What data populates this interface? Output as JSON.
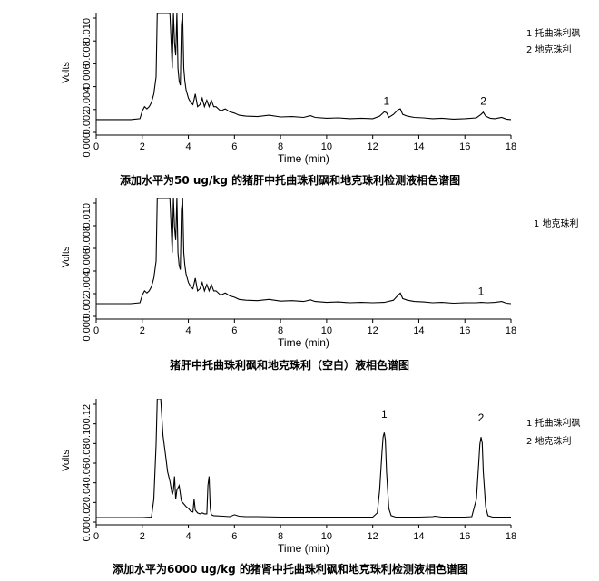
{
  "chart_data": [
    {
      "type": "line",
      "caption": "添加水平为50 ug/kg 的猪肝中托曲珠利砜和地克珠利检测液相色谱图",
      "xlabel": "Time (min)",
      "ylabel": "Volts",
      "xlim": [
        0,
        18
      ],
      "x_ticks": [
        "0",
        "2",
        "4",
        "6",
        "8",
        "10",
        "12",
        "14",
        "16",
        "18"
      ],
      "y_tick_labels": [
        "0.000",
        "0.002",
        "0.004",
        "0.006",
        "0.008",
        "0.010"
      ],
      "ylim": [
        -0.0003,
        0.0025
      ],
      "legend": [
        "1 托曲珠利砜",
        "2 地克珠利"
      ],
      "peak_labels": [
        {
          "text": "1",
          "x": 12.6,
          "y": 0.00018
        },
        {
          "text": "2",
          "x": 16.8,
          "y": 0.00018
        }
      ],
      "x": [
        0,
        0.5,
        1,
        1.5,
        1.9,
        2.0,
        2.1,
        2.2,
        2.3,
        2.4,
        2.5,
        2.6,
        2.65,
        2.7,
        3.0,
        3.2,
        3.3,
        3.35,
        3.4,
        3.45,
        3.5,
        3.55,
        3.6,
        3.65,
        3.7,
        3.75,
        3.8,
        3.85,
        3.9,
        3.95,
        4.0,
        4.1,
        4.2,
        4.3,
        4.4,
        4.5,
        4.6,
        4.7,
        4.8,
        4.9,
        5.0,
        5.1,
        5.2,
        5.4,
        5.6,
        5.8,
        6.0,
        6.2,
        6.5,
        7.0,
        7.5,
        8.0,
        8.5,
        9.0,
        9.3,
        9.5,
        10,
        10.5,
        11,
        11.5,
        12.0,
        12.3,
        12.5,
        12.6,
        12.7,
        12.9,
        13.1,
        13.2,
        13.3,
        13.5,
        13.8,
        14.2,
        14.6,
        15.0,
        15.5,
        16.0,
        16.5,
        16.7,
        16.8,
        16.9,
        17.1,
        17.3,
        17.6,
        17.8,
        18.0
      ],
      "y": [
        0,
        0,
        0,
        0,
        2e-05,
        0.0002,
        0.0003,
        0.00025,
        0.0003,
        0.0004,
        0.0006,
        0.001,
        0.0025,
        0.0025,
        0.0025,
        0.0025,
        0.0012,
        0.0025,
        0.0018,
        0.0015,
        0.0025,
        0.0012,
        0.0009,
        0.0008,
        0.0022,
        0.0025,
        0.0012,
        0.0009,
        0.0007,
        0.0006,
        0.0005,
        0.0004,
        0.00035,
        0.0006,
        0.0003,
        0.00035,
        0.0005,
        0.0003,
        0.00045,
        0.0003,
        0.00045,
        0.0003,
        0.0003,
        0.0002,
        0.00025,
        0.00018,
        0.00015,
        0.0001,
        8e-05,
        7e-05,
        0.0001,
        6e-05,
        7e-05,
        5e-05,
        9e-05,
        5e-05,
        3e-05,
        4e-05,
        2e-05,
        3e-05,
        2e-05,
        8e-05,
        0.00018,
        0.00016,
        5e-05,
        0.00012,
        0.00023,
        0.00025,
        0.00012,
        8e-05,
        5e-05,
        4e-05,
        2e-05,
        3e-05,
        1e-05,
        2e-05,
        4e-05,
        0.00012,
        0.00017,
        8e-05,
        3e-05,
        2e-05,
        5e-05,
        1e-05,
        0.0
      ]
    },
    {
      "type": "line",
      "caption": "猪肝中托曲珠利砜和地克珠利（空白）液相色谱图",
      "xlabel": "Time (min)",
      "ylabel": "Volts",
      "xlim": [
        0,
        18
      ],
      "x_ticks": [
        "0",
        "2",
        "4",
        "6",
        "8",
        "10",
        "12",
        "14",
        "16",
        "18"
      ],
      "y_tick_labels": [
        "0.000",
        "0.002",
        "0.004",
        "0.006",
        "0.008",
        "0.010"
      ],
      "ylim": [
        -0.0003,
        0.0025
      ],
      "legend": [
        "1 地克珠利"
      ],
      "peak_labels": [
        {
          "text": "1",
          "x": 16.7,
          "y": 3e-05
        }
      ],
      "x": [
        0,
        0.5,
        1,
        1.5,
        1.9,
        2.0,
        2.1,
        2.2,
        2.3,
        2.4,
        2.5,
        2.6,
        2.65,
        2.7,
        3.0,
        3.2,
        3.3,
        3.35,
        3.4,
        3.45,
        3.5,
        3.55,
        3.6,
        3.65,
        3.7,
        3.75,
        3.8,
        3.85,
        3.9,
        3.95,
        4.0,
        4.1,
        4.2,
        4.3,
        4.4,
        4.5,
        4.6,
        4.7,
        4.8,
        4.9,
        5.0,
        5.1,
        5.2,
        5.4,
        5.6,
        5.8,
        6.0,
        6.2,
        6.5,
        7.0,
        7.5,
        8.0,
        8.5,
        9.0,
        9.3,
        9.5,
        10,
        10.5,
        11,
        11.5,
        12.0,
        12.5,
        12.9,
        13.1,
        13.2,
        13.3,
        13.5,
        13.8,
        14.2,
        14.6,
        15.0,
        15.5,
        16.0,
        16.5,
        16.7,
        17.0,
        17.3,
        17.6,
        17.8,
        18.0
      ],
      "y": [
        0,
        0,
        0,
        0,
        2e-05,
        0.0002,
        0.0003,
        0.00025,
        0.0003,
        0.0004,
        0.0006,
        0.001,
        0.0025,
        0.0025,
        0.0025,
        0.0025,
        0.0012,
        0.0025,
        0.0018,
        0.0015,
        0.0025,
        0.0012,
        0.0009,
        0.0008,
        0.0022,
        0.0025,
        0.0012,
        0.0009,
        0.0007,
        0.0006,
        0.0005,
        0.0004,
        0.00035,
        0.0006,
        0.0003,
        0.00035,
        0.0005,
        0.0003,
        0.00045,
        0.0003,
        0.00045,
        0.0003,
        0.0003,
        0.0002,
        0.00025,
        0.00018,
        0.00015,
        0.0001,
        8e-05,
        7e-05,
        0.0001,
        6e-05,
        7e-05,
        5e-05,
        9e-05,
        5e-05,
        3e-05,
        4e-05,
        2e-05,
        3e-05,
        2e-05,
        3e-05,
        8e-05,
        0.0002,
        0.00025,
        0.00012,
        8e-05,
        5e-05,
        4e-05,
        2e-05,
        3e-05,
        1e-05,
        2e-05,
        2e-05,
        3e-05,
        2e-05,
        3e-05,
        5e-05,
        1e-05,
        0.0
      ]
    },
    {
      "type": "line",
      "caption": "添加水平为6000 ug/kg 的猪肾中托曲珠利砜和地克珠利检测液相色谱图",
      "xlabel": "Time (min)",
      "ylabel": "Volts",
      "xlim": [
        0,
        18
      ],
      "x_ticks": [
        "0",
        "2",
        "4",
        "6",
        "8",
        "10",
        "12",
        "14",
        "16",
        "18"
      ],
      "y_tick_labels": [
        "0.00",
        "0.02",
        "0.04",
        "0.06",
        "0.08",
        "0.10",
        "0.12"
      ],
      "ylim": [
        -0.005,
        0.13
      ],
      "legend": [
        "1 托曲珠利砜",
        "2 地克珠利"
      ],
      "peak_labels": [
        {
          "text": "1",
          "x": 12.5,
          "y": 0.101
        },
        {
          "text": "2",
          "x": 16.7,
          "y": 0.097
        }
      ],
      "x": [
        0,
        1,
        2,
        2.4,
        2.5,
        2.6,
        2.65,
        2.7,
        2.8,
        2.9,
        3.0,
        3.1,
        3.2,
        3.3,
        3.35,
        3.4,
        3.45,
        3.5,
        3.6,
        3.7,
        3.8,
        3.9,
        4.0,
        4.1,
        4.2,
        4.25,
        4.3,
        4.4,
        4.5,
        4.6,
        4.7,
        4.8,
        4.85,
        4.9,
        4.95,
        5.0,
        5.1,
        5.5,
        5.8,
        6.0,
        6.2,
        6.5,
        7,
        8,
        9,
        10,
        11,
        12.0,
        12.2,
        12.3,
        12.4,
        12.45,
        12.5,
        12.55,
        12.6,
        12.7,
        12.8,
        13,
        14,
        14.6,
        14.7,
        15,
        16,
        16.3,
        16.5,
        16.6,
        16.65,
        16.7,
        16.75,
        16.8,
        16.9,
        17.0,
        17.2,
        17.5,
        18
      ],
      "y": [
        0,
        0,
        0,
        0.0005,
        0.02,
        0.08,
        0.13,
        0.13,
        0.13,
        0.09,
        0.07,
        0.05,
        0.04,
        0.025,
        0.03,
        0.045,
        0.02,
        0.03,
        0.035,
        0.018,
        0.015,
        0.012,
        0.01,
        0.007,
        0.006,
        0.02,
        0.008,
        0.005,
        0.004,
        0.005,
        0.004,
        0.004,
        0.035,
        0.045,
        0.01,
        0.003,
        0.002,
        0.0015,
        0.001,
        0.003,
        0.0015,
        0.001,
        0.001,
        0.0005,
        0.0005,
        0.0005,
        0.0005,
        0.0005,
        0.005,
        0.03,
        0.07,
        0.088,
        0.093,
        0.085,
        0.05,
        0.01,
        0.002,
        0.0005,
        0.0005,
        0.001,
        0.0015,
        0.0005,
        0.0005,
        0.001,
        0.02,
        0.06,
        0.08,
        0.088,
        0.082,
        0.05,
        0.012,
        0.002,
        0.0005,
        0.0005,
        0.0005
      ]
    }
  ]
}
